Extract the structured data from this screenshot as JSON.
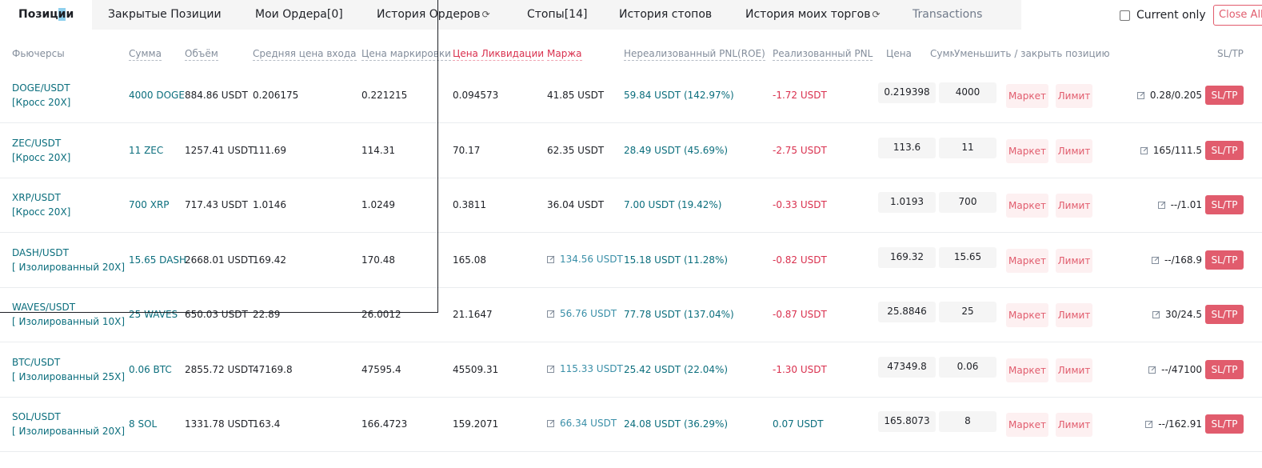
{
  "tabs": [
    {
      "label_a": "Позиц",
      "label_hl": "и",
      "label_b": "и"
    },
    {
      "label": "Закрытые Позиции"
    },
    {
      "label": "Мои Ордера[0]"
    },
    {
      "label": "История Ордеров"
    },
    {
      "label": "Стопы[14]"
    },
    {
      "label": "История стопов"
    },
    {
      "label": "История моих торгов"
    },
    {
      "label": "Transactions"
    }
  ],
  "reload_icon": "⟳",
  "current_only_label": "Current only",
  "close_all_label": "Close All",
  "headers": {
    "futures": "Фьючерсы",
    "amount": "Сумма",
    "volume": "Объём",
    "entry": "Средняя цена входа",
    "mark": "Цена маркировки",
    "liq": "Цена Ликвидации",
    "margin": "Маржа",
    "upnl": "Нереализованный PNL(ROE)",
    "rpnl": "Реализованный PNL",
    "price": "Цена",
    "sum": "Сумма",
    "reduce": "Уменьшить / закрыть позицию",
    "sltp": "SL/TP"
  },
  "buttons": {
    "market": "Маркет",
    "limit": "Лимит",
    "sltp": "SL/TP"
  },
  "rows": [
    {
      "symbol": "DOGE/USDT",
      "mode": "[Кросс 20X]",
      "amount": "4000 DOGE",
      "volume": "884.86 USDT",
      "entry": "0.206175",
      "mark": "0.221215",
      "liq": "0.094573",
      "margin": "41.85 USDT",
      "upnl": "59.84 USDT (142.97%)",
      "rpnl": "-1.72 USDT",
      "price": "0.219398",
      "qty": "4000",
      "sltp": "0.28/0.205"
    },
    {
      "symbol": "ZEC/USDT",
      "mode": "[Кросс 20X]",
      "amount": "11 ZEC",
      "volume": "1257.41 USDT",
      "entry": "111.69",
      "mark": "114.31",
      "liq": "70.17",
      "margin": "62.35 USDT",
      "upnl": "28.49 USDT (45.69%)",
      "rpnl": "-2.75 USDT",
      "price": "113.6",
      "qty": "11",
      "sltp": "165/111.5"
    },
    {
      "symbol": "XRP/USDT",
      "mode": "[Кросс 20X]",
      "amount": "700 XRP",
      "volume": "717.43 USDT",
      "entry": "1.0146",
      "mark": "1.0249",
      "liq": "0.3811",
      "margin": "36.04 USDT",
      "upnl": "7.00 USDT (19.42%)",
      "rpnl": "-0.33 USDT",
      "price": "1.0193",
      "qty": "700",
      "sltp": "--/1.01"
    },
    {
      "symbol": "DASH/USDT",
      "mode": "[ Изолированный 20X]",
      "amount": "15.65 DASH",
      "volume": "2668.01 USDT",
      "entry": "169.42",
      "mark": "170.48",
      "liq": "165.08",
      "margin": "134.56 USDT",
      "upnl": "15.18 USDT (11.28%)",
      "rpnl": "-0.82 USDT",
      "price": "169.32",
      "qty": "15.65",
      "sltp": "--/168.9"
    },
    {
      "symbol": "WAVES/USDT",
      "mode": "[ Изолированный 10X]",
      "amount": "25 WAVES",
      "volume": "650.03 USDT",
      "entry": "22.89",
      "mark": "26.0012",
      "liq": "21.1647",
      "margin": "56.76 USDT",
      "upnl": "77.78 USDT (137.04%)",
      "rpnl": "-0.87 USDT",
      "price": "25.8846",
      "qty": "25",
      "sltp": "30/24.5"
    },
    {
      "symbol": "BTC/USDT",
      "mode": "[ Изолированный 25X]",
      "amount": "0.06 BTC",
      "volume": "2855.72 USDT",
      "entry": "47169.8",
      "mark": "47595.4",
      "liq": "45509.31",
      "margin": "115.33 USDT",
      "upnl": "25.42 USDT (22.04%)",
      "rpnl": "-1.30 USDT",
      "price": "47349.8",
      "qty": "0.06",
      "sltp": "--/47100"
    },
    {
      "symbol": "SOL/USDT",
      "mode": "[ Изолированный 20X]",
      "amount": "8 SOL",
      "volume": "1331.78 USDT",
      "entry": "163.4",
      "mark": "166.4723",
      "liq": "159.2071",
      "margin": "66.34 USDT",
      "upnl": "24.08 USDT (36.29%)",
      "rpnl": "0.07 USDT",
      "price": "165.8073",
      "qty": "8",
      "sltp": "--/162.91"
    }
  ]
}
